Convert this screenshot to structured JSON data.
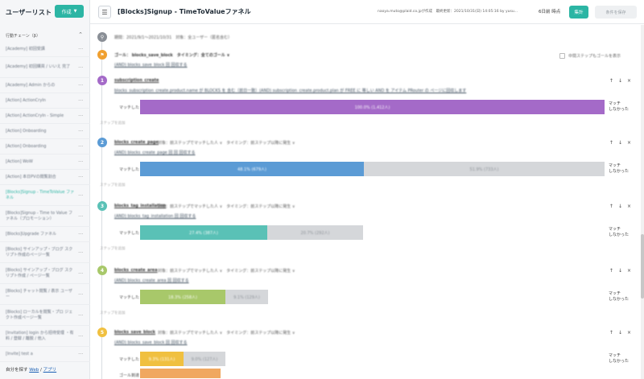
{
  "sidebar": {
    "title": "ユーザーリスト",
    "create_label": "作成",
    "section_label": "行動チェーン（β）",
    "items": [
      {
        "label": "[Academy] 初回受講"
      },
      {
        "label": "[Academy] 初回購買 / いいえ 完了"
      },
      {
        "label": "[Academy] Admin からの"
      },
      {
        "label": "[Action] ActionCryIn"
      },
      {
        "label": "[Action] ActionCryIn - Simple"
      },
      {
        "label": "[Action] Onboarding"
      },
      {
        "label": "[Action] Onboarding"
      },
      {
        "label": "[Action] WoW"
      },
      {
        "label": "[Action] 本日PVの閲覧割合"
      },
      {
        "label": "[Blocks]Signup - TimeToValue ファネル"
      },
      {
        "label": "[Blocks]Signup - Time to Value ファネル（プロモーション）"
      },
      {
        "label": "[Blocks]Upgrade ファネル"
      },
      {
        "label": "[Blocks] サインアップ・ブログ スクリプト作成のページ一覧"
      },
      {
        "label": "[Blocks] サインアップ・ブログ スクリプト作成 / ページ一覧"
      },
      {
        "label": "[Blocks] チャット閲覧 / 表示 ユーザー"
      },
      {
        "label": "[Blocks] ローカルを閲覧・プロ ジェクト作成ページ一覧"
      },
      {
        "label": "[Invitation] login から招待受理 ・有料 / 登録 / 離脱 / 他入"
      },
      {
        "label": "[Invite] test a"
      }
    ],
    "footer_prefix": "自分を探す",
    "footer_web": "Web",
    "footer_sep": " / ",
    "footer_app": "アプリ"
  },
  "topbar": {
    "title": "[Blocks]Signup - TimeToValueファネル",
    "meta": "naoya.muto@plaid.co.jpが作成　最終更新：2021/10/31(日) 14:05:16 by yusu...",
    "time": "6日前 時点",
    "aggregate_label": "集計",
    "save_label": "条件を保存"
  },
  "main": {
    "base": {
      "num": "",
      "text": "期間：2021/9/1〜2021/10/31　対象：全ユーザー（匿名含む）"
    },
    "goal": {
      "num": "",
      "text": "ゴール： blocks_save_block　タイミング：全てのゴール ∨",
      "sub": "(AND) blocks_save_block 回 回収する",
      "checkbox_label": "中間ステップもゴールを表示"
    },
    "steps": [
      {
        "num": "1",
        "color": "#a46ac8",
        "title": "subscription_create",
        "desc": "blocks_subscription_create.product.name が BLOCKS を 含む（前日一致）(AND) subscription_create.product.plan が FREE に 等しい AND を アイテム PRouter の ページに回収します",
        "match_label": "マッチした",
        "bar1_text": "100.0% (1,412人)",
        "bar1_frac": 1.0,
        "bar2_text": "",
        "right1": "マッチ",
        "right2": "しなかった",
        "add_label": "ステップを追加"
      },
      {
        "num": "2",
        "color": "#5b9bd5",
        "title": "blocks_create_page",
        "desc": "(AND) blocks_create_page 回 回 回収する",
        "header_extra": "対象：前ステップでマッチした人 ∨　タイミング：前ステップ以降に発生 ∨",
        "match_label": "マッチした",
        "bar1_text": "48.1% (679人)",
        "bar1_frac": 0.481,
        "bar2_text": "51.9% (733人)",
        "right1": "マッチ",
        "right2": "しなかった",
        "add_label": "ステップを追加"
      },
      {
        "num": "3",
        "color": "#5ac1b6",
        "title": "blocks_tag_installation",
        "desc": "(AND) blocks_tag_installation 回 回収する",
        "header_extra": "対象：前ステップでマッチした人 ∨　タイミング：前ステップ以降に発生 ∨",
        "match_label": "マッチした",
        "bar1_text": "27.4% (387人)",
        "bar1_frac": 0.274,
        "bar2_text": "20.7% (292人)",
        "right1": "マッチ",
        "right2": "しなかった",
        "add_label": "ステップを追加"
      },
      {
        "num": "4",
        "color": "#a8c86a",
        "title": "blocks_create_area",
        "desc": "(AND) blocks_create_area 回 回収する",
        "header_extra": "対象：前ステップでマッチした人 ∨　タイミング：前ステップ以降に発生 ∨",
        "match_label": "マッチした",
        "bar1_text": "18.3% (258人)",
        "bar1_frac": 0.183,
        "bar2_text": "9.1% (129人)",
        "right1": "マッチ",
        "right2": "しなかった",
        "add_label": "ステップを追加"
      },
      {
        "num": "5",
        "color": "#f0c040",
        "title": "blocks_save_block",
        "desc": "(AND) blocks_save_block 回 回収する",
        "header_extra": "対象：前ステップでマッチした人 ∨　タイミング：前ステップ以降に発生 ∨",
        "match_label": "マッチした",
        "bar1_text": "9.3% (131人)",
        "bar1_frac": 0.093,
        "bar2_text": "9.0% (127人)",
        "right1": "マッチ",
        "right2": "しなかった",
        "sub_label": "ゴール到達"
      }
    ]
  },
  "colors": {
    "accent": "#2cb5a4",
    "goal_node": "#f0a030",
    "base_node": "#8a8f96"
  }
}
